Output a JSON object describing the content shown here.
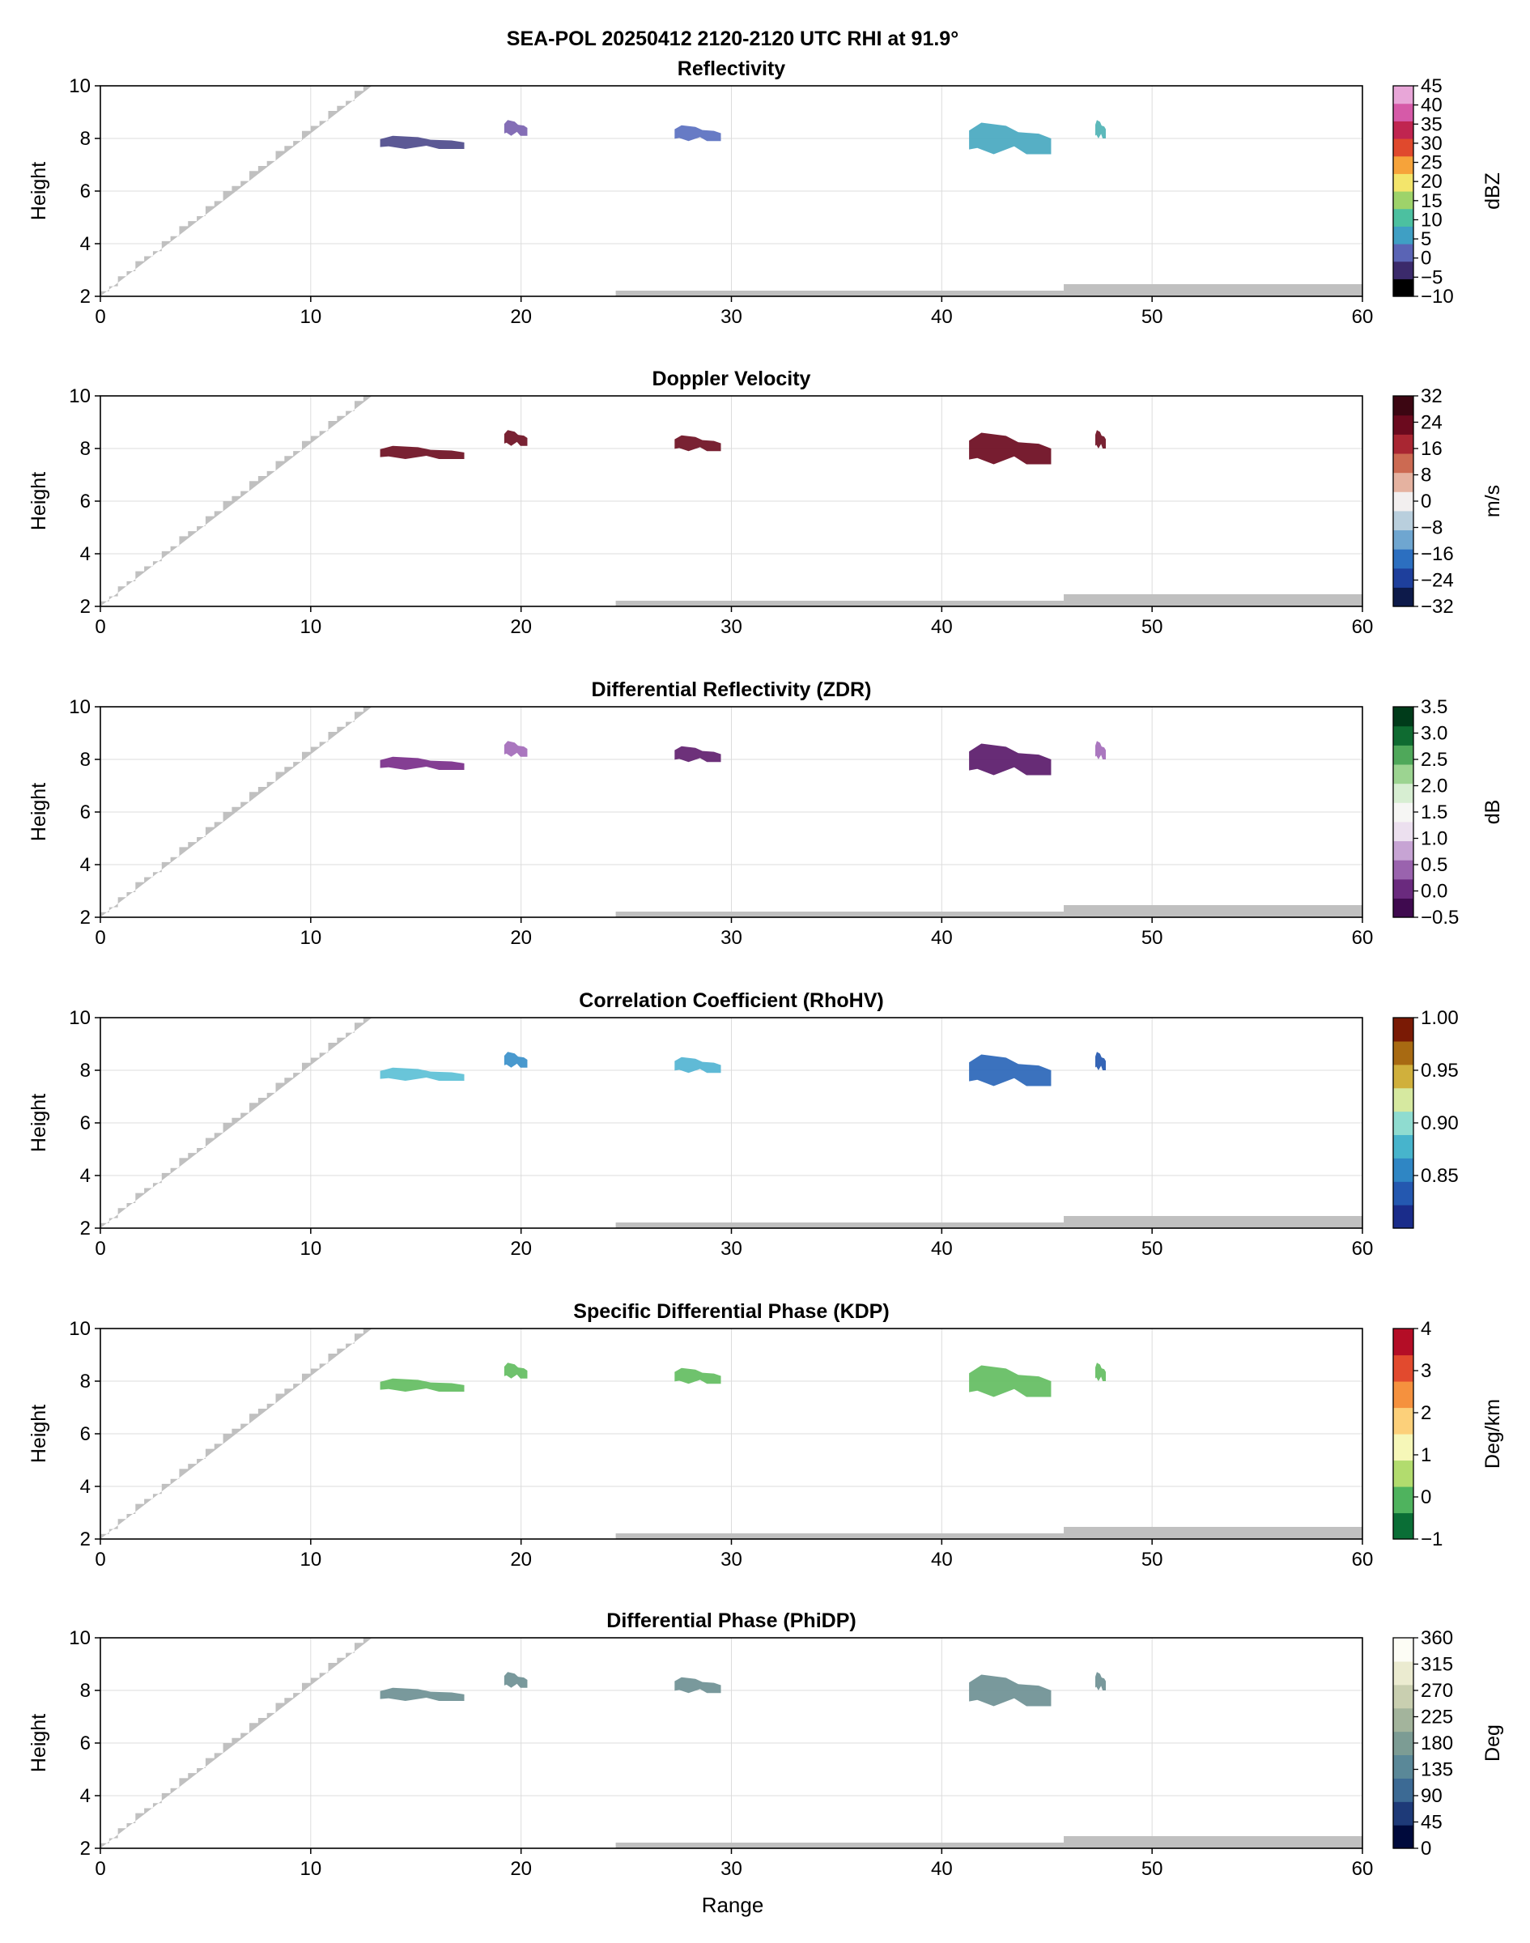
{
  "figure": {
    "title": "SEA-POL 20250412 2120-2120 UTC RHI at 91.9°",
    "xlabel": "Range"
  },
  "colors": {
    "blocked": "#c0c0c0",
    "grid": "#dcdcdc",
    "axis": "#000000"
  },
  "chart_data": [
    {
      "type": "heatmap",
      "title": "Reflectivity",
      "xlabel": "",
      "ylabel": "Height",
      "x_ticks": [
        "0",
        "10",
        "20",
        "30",
        "40",
        "50",
        "60"
      ],
      "y_ticks": [
        "2",
        "4",
        "6",
        "8",
        "10"
      ],
      "xlim": [
        0,
        60
      ],
      "ylim": [
        2,
        10
      ],
      "grid": true,
      "colorbar": {
        "label": "dBZ",
        "range": [
          -10,
          45
        ],
        "ticks": [
          "45",
          "40",
          "35",
          "30",
          "25",
          "20",
          "15",
          "10",
          "5",
          "0",
          "−5",
          "−10"
        ],
        "tick_values": [
          45,
          40,
          35,
          30,
          25,
          20,
          15,
          10,
          5,
          0,
          -5,
          -10
        ],
        "colors": [
          "#000000",
          "#3b2a6b",
          "#5a64b5",
          "#3f9fc4",
          "#4cc0a0",
          "#9ed36a",
          "#f3e56b",
          "#f6a33a",
          "#e0492d",
          "#c02550",
          "#d65aa8",
          "#e8a6d8"
        ]
      },
      "echoes": [
        {
          "range_km": [
            13.3,
            17.3
          ],
          "height_km": [
            7.6,
            8.1
          ],
          "color": "#4e4b8c"
        },
        {
          "range_km": [
            19.2,
            20.3
          ],
          "height_km": [
            8.1,
            8.7
          ],
          "color": "#7a62b0"
        },
        {
          "range_km": [
            27.3,
            29.5
          ],
          "height_km": [
            7.9,
            8.5
          ],
          "color": "#5a70c0"
        },
        {
          "range_km": [
            41.3,
            45.2
          ],
          "height_km": [
            7.4,
            8.6
          ],
          "color": "#48a8c0"
        },
        {
          "range_km": [
            47.3,
            47.8
          ],
          "height_km": [
            8.0,
            8.7
          ],
          "color": "#4fb3b5"
        }
      ]
    },
    {
      "type": "heatmap",
      "title": "Doppler Velocity",
      "xlabel": "",
      "ylabel": "Height",
      "x_ticks": [
        "0",
        "10",
        "20",
        "30",
        "40",
        "50",
        "60"
      ],
      "y_ticks": [
        "2",
        "4",
        "6",
        "8",
        "10"
      ],
      "xlim": [
        0,
        60
      ],
      "ylim": [
        2,
        10
      ],
      "grid": true,
      "colorbar": {
        "label": "m/s",
        "range": [
          -32,
          32
        ],
        "ticks": [
          "32",
          "24",
          "16",
          "8",
          "0",
          "−8",
          "−16",
          "−24",
          "−32"
        ],
        "tick_values": [
          32,
          24,
          16,
          8,
          0,
          -8,
          -16,
          -24,
          -32
        ],
        "colors": [
          "#0d1a4a",
          "#1e3f9c",
          "#2c6fc0",
          "#6fa6d0",
          "#b9cfdd",
          "#f2efef",
          "#e5b2a0",
          "#cc6a52",
          "#a92632",
          "#6b0a1e",
          "#3c0612"
        ]
      },
      "echoes": [
        {
          "range_km": [
            13.3,
            17.3
          ],
          "height_km": [
            7.6,
            8.1
          ],
          "color": "#6e0f22"
        },
        {
          "range_km": [
            19.2,
            20.3
          ],
          "height_km": [
            8.1,
            8.7
          ],
          "color": "#6e0f22"
        },
        {
          "range_km": [
            27.3,
            29.5
          ],
          "height_km": [
            7.9,
            8.5
          ],
          "color": "#6e0f22"
        },
        {
          "range_km": [
            41.3,
            45.2
          ],
          "height_km": [
            7.4,
            8.6
          ],
          "color": "#6b0a1e"
        },
        {
          "range_km": [
            47.3,
            47.8
          ],
          "height_km": [
            8.0,
            8.7
          ],
          "color": "#6e0f22"
        }
      ]
    },
    {
      "type": "heatmap",
      "title": "Differential Reflectivity (ZDR)",
      "xlabel": "",
      "ylabel": "Height",
      "x_ticks": [
        "0",
        "10",
        "20",
        "30",
        "40",
        "50",
        "60"
      ],
      "y_ticks": [
        "2",
        "4",
        "6",
        "8",
        "10"
      ],
      "xlim": [
        0,
        60
      ],
      "ylim": [
        2,
        10
      ],
      "grid": true,
      "colorbar": {
        "label": "dB",
        "range": [
          -0.5,
          3.5
        ],
        "ticks": [
          "3.5",
          "3.0",
          "2.5",
          "2.0",
          "1.5",
          "1.0",
          "0.5",
          "0.0",
          "−0.5"
        ],
        "tick_values": [
          3.5,
          3.0,
          2.5,
          2.0,
          1.5,
          1.0,
          0.5,
          0.0,
          -0.5
        ],
        "colors": [
          "#3f0a4f",
          "#6a2a7e",
          "#9a63ae",
          "#c7a4d4",
          "#ece0ef",
          "#f6f6f4",
          "#d7eed2",
          "#9cd491",
          "#4fa85a",
          "#0f6b31",
          "#003b1a"
        ]
      },
      "echoes": [
        {
          "range_km": [
            13.3,
            17.3
          ],
          "height_km": [
            7.6,
            8.1
          ],
          "color": "#7a2e8a"
        },
        {
          "range_km": [
            19.2,
            20.3
          ],
          "height_km": [
            8.1,
            8.7
          ],
          "color": "#a36bba"
        },
        {
          "range_km": [
            27.3,
            29.5
          ],
          "height_km": [
            7.9,
            8.5
          ],
          "color": "#61206f"
        },
        {
          "range_km": [
            41.3,
            45.2
          ],
          "height_km": [
            7.4,
            8.6
          ],
          "color": "#5a1a6a"
        },
        {
          "range_km": [
            47.3,
            47.8
          ],
          "height_km": [
            8.0,
            8.7
          ],
          "color": "#a36bba"
        }
      ]
    },
    {
      "type": "heatmap",
      "title": "Correlation Coefficient (RhoHV)",
      "xlabel": "",
      "ylabel": "Height",
      "x_ticks": [
        "0",
        "10",
        "20",
        "30",
        "40",
        "50",
        "60"
      ],
      "y_ticks": [
        "2",
        "4",
        "6",
        "8",
        "10"
      ],
      "xlim": [
        0,
        60
      ],
      "ylim": [
        2,
        10
      ],
      "grid": true,
      "colorbar": {
        "label": "",
        "range": [
          0.8,
          1.0
        ],
        "ticks": [
          "1.00",
          "0.95",
          "0.90",
          "0.85"
        ],
        "tick_values": [
          1.0,
          0.95,
          0.9,
          0.85
        ],
        "colors": [
          "#1a2c8a",
          "#2458b0",
          "#2f86c4",
          "#47b4cc",
          "#8fdcd0",
          "#d6e9a0",
          "#d0b03c",
          "#a86a12",
          "#7a1a05"
        ]
      },
      "echoes": [
        {
          "range_km": [
            13.3,
            17.3
          ],
          "height_km": [
            7.6,
            8.1
          ],
          "color": "#5cc0d6"
        },
        {
          "range_km": [
            19.2,
            20.3
          ],
          "height_km": [
            8.1,
            8.7
          ],
          "color": "#3a90ca"
        },
        {
          "range_km": [
            27.3,
            29.5
          ],
          "height_km": [
            7.9,
            8.5
          ],
          "color": "#52b4d2"
        },
        {
          "range_km": [
            41.3,
            45.2
          ],
          "height_km": [
            7.4,
            8.6
          ],
          "color": "#2a66b8"
        },
        {
          "range_km": [
            47.3,
            47.8
          ],
          "height_km": [
            8.0,
            8.7
          ],
          "color": "#2458b0"
        }
      ]
    },
    {
      "type": "heatmap",
      "title": "Specific Differential Phase (KDP)",
      "xlabel": "",
      "ylabel": "Height",
      "x_ticks": [
        "0",
        "10",
        "20",
        "30",
        "40",
        "50",
        "60"
      ],
      "y_ticks": [
        "2",
        "4",
        "6",
        "8",
        "10"
      ],
      "xlim": [
        0,
        60
      ],
      "ylim": [
        2,
        10
      ],
      "grid": true,
      "colorbar": {
        "label": "Deg/km",
        "range": [
          -1,
          4
        ],
        "ticks": [
          "4",
          "3",
          "2",
          "1",
          "0",
          "−1"
        ],
        "tick_values": [
          4,
          3,
          2,
          1,
          0,
          -1
        ],
        "colors": [
          "#0a6e36",
          "#4fb35e",
          "#b2dc6e",
          "#f6f7b8",
          "#fcd07a",
          "#f5913e",
          "#e24a2e",
          "#b40d26"
        ]
      },
      "echoes": [
        {
          "range_km": [
            13.3,
            17.3
          ],
          "height_km": [
            7.6,
            8.1
          ],
          "color": "#63bd61"
        },
        {
          "range_km": [
            19.2,
            20.3
          ],
          "height_km": [
            8.1,
            8.7
          ],
          "color": "#63bd61"
        },
        {
          "range_km": [
            27.3,
            29.5
          ],
          "height_km": [
            7.9,
            8.5
          ],
          "color": "#63bd61"
        },
        {
          "range_km": [
            41.3,
            45.2
          ],
          "height_km": [
            7.4,
            8.6
          ],
          "color": "#63bd61"
        },
        {
          "range_km": [
            47.3,
            47.8
          ],
          "height_km": [
            8.0,
            8.7
          ],
          "color": "#63bd61"
        }
      ]
    },
    {
      "type": "heatmap",
      "title": "Differential Phase (PhiDP)",
      "xlabel": "Range",
      "ylabel": "Height",
      "x_ticks": [
        "0",
        "10",
        "20",
        "30",
        "40",
        "50",
        "60"
      ],
      "y_ticks": [
        "2",
        "4",
        "6",
        "8",
        "10"
      ],
      "xlim": [
        0,
        60
      ],
      "ylim": [
        2,
        10
      ],
      "grid": true,
      "colorbar": {
        "label": "Deg",
        "range": [
          0,
          360
        ],
        "ticks": [
          "360",
          "315",
          "270",
          "225",
          "180",
          "135",
          "90",
          "45",
          "0"
        ],
        "tick_values": [
          360,
          315,
          270,
          225,
          180,
          135,
          90,
          45,
          0
        ],
        "colors": [
          "#000a3c",
          "#1e3a78",
          "#3c6a94",
          "#5a8898",
          "#7c9c94",
          "#a3b49c",
          "#c9cfb0",
          "#ebebd0",
          "#fdfdf5"
        ]
      },
      "echoes": [
        {
          "range_km": [
            13.3,
            17.3
          ],
          "height_km": [
            7.6,
            8.1
          ],
          "color": "#6e9094"
        },
        {
          "range_km": [
            19.2,
            20.3
          ],
          "height_km": [
            8.1,
            8.7
          ],
          "color": "#6e9094"
        },
        {
          "range_km": [
            27.3,
            29.5
          ],
          "height_km": [
            7.9,
            8.5
          ],
          "color": "#6e9094"
        },
        {
          "range_km": [
            41.3,
            45.2
          ],
          "height_km": [
            7.4,
            8.6
          ],
          "color": "#6e9094"
        },
        {
          "range_km": [
            47.3,
            47.8
          ],
          "height_km": [
            8.0,
            8.7
          ],
          "color": "#6e9094"
        }
      ]
    }
  ]
}
